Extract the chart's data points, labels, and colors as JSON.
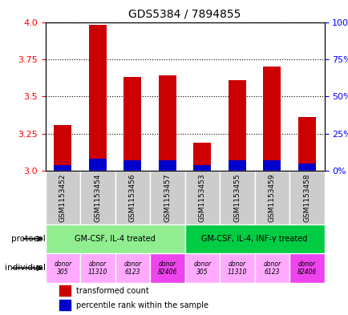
{
  "title": "GDS5384 / 7894855",
  "samples": [
    "GSM1153452",
    "GSM1153454",
    "GSM1153456",
    "GSM1153457",
    "GSM1153453",
    "GSM1153455",
    "GSM1153459",
    "GSM1153458"
  ],
  "transformed_count": [
    3.31,
    3.98,
    3.63,
    3.64,
    3.19,
    3.61,
    3.7,
    3.36
  ],
  "percentile_rank": [
    0.04,
    0.08,
    0.07,
    0.07,
    0.04,
    0.07,
    0.07,
    0.05
  ],
  "bar_base": 3.0,
  "ylim": [
    3.0,
    4.0
  ],
  "yticks_left": [
    3.0,
    3.25,
    3.5,
    3.75,
    4.0
  ],
  "yticks_right": [
    0,
    25,
    50,
    75,
    100
  ],
  "protocols": [
    {
      "label": "GM-CSF, IL-4 treated",
      "span": [
        0,
        4
      ],
      "color": "#90EE90"
    },
    {
      "label": "GM-CSF, IL-4, INF-γ treated",
      "span": [
        4,
        8
      ],
      "color": "#00CC44"
    }
  ],
  "individuals": [
    {
      "label": "donor\n305",
      "idx": 0,
      "color": "#FF99FF"
    },
    {
      "label": "donor\n11310",
      "idx": 1,
      "color": "#FF99FF"
    },
    {
      "label": "donor\n6123",
      "idx": 2,
      "color": "#FF99FF"
    },
    {
      "label": "donor\n82406",
      "idx": 3,
      "color": "#FF66FF"
    },
    {
      "label": "donor\n305",
      "idx": 4,
      "color": "#FF99FF"
    },
    {
      "label": "donor\n11310",
      "idx": 5,
      "color": "#FF99FF"
    },
    {
      "label": "donor\n6123",
      "idx": 6,
      "color": "#FF99FF"
    },
    {
      "label": "donor\n82406",
      "idx": 7,
      "color": "#FF66FF"
    }
  ],
  "bar_color": "#CC0000",
  "percentile_color": "#0000CC",
  "sample_bg_color": "#CCCCCC",
  "legend_red": "transformed count",
  "legend_blue": "percentile rank within the sample"
}
